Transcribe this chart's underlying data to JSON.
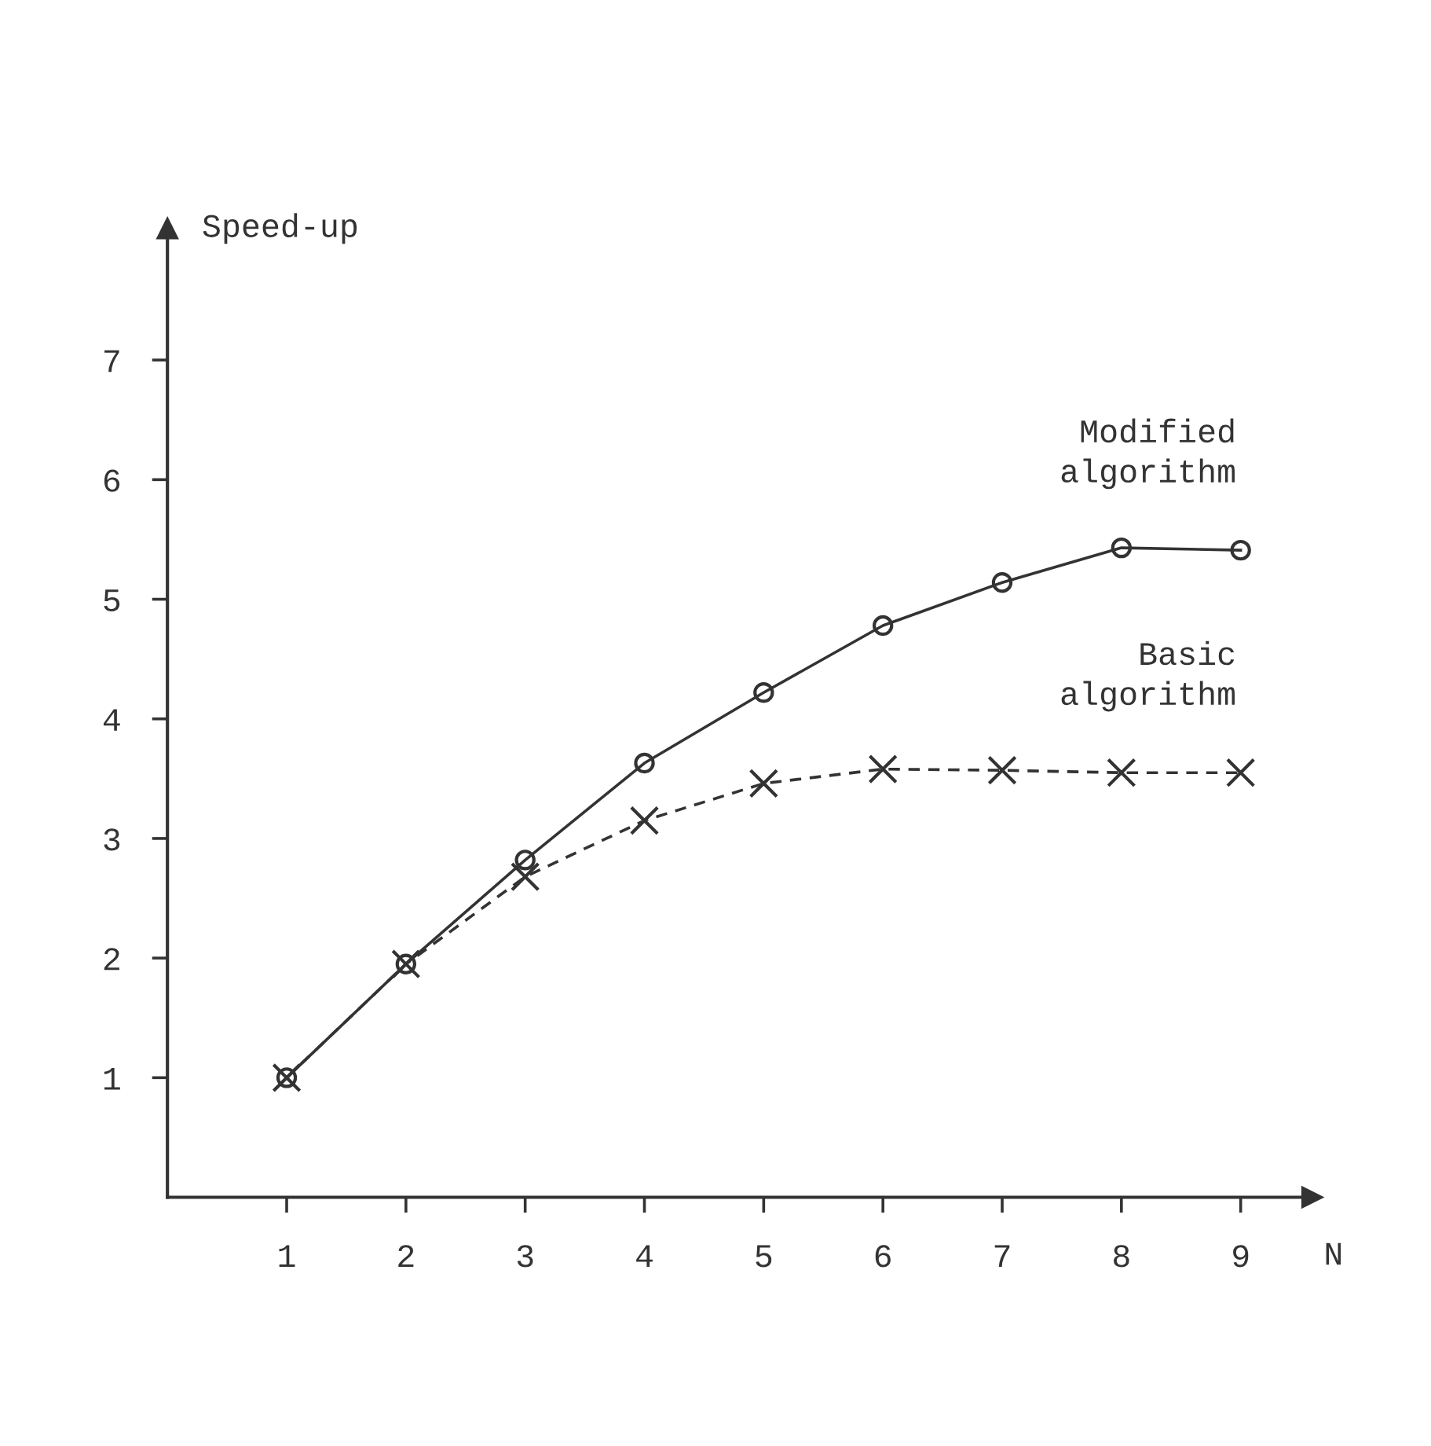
{
  "chart_data": {
    "type": "line",
    "xlabel": "N",
    "ylabel": "Speed-up",
    "x": [
      1,
      2,
      3,
      4,
      5,
      6,
      7,
      8,
      9
    ],
    "series": [
      {
        "name": "Modified algorithm",
        "color": "#333333",
        "marker": "circle",
        "line_style": "solid",
        "values": [
          1.0,
          1.95,
          2.82,
          3.63,
          4.22,
          4.78,
          5.14,
          5.43,
          5.41
        ]
      },
      {
        "name": "Basic algorithm",
        "color": "#333333",
        "marker": "cross",
        "line_style": "dashed",
        "values": [
          1.0,
          1.95,
          2.68,
          3.15,
          3.46,
          3.58,
          3.57,
          3.55,
          3.55
        ]
      }
    ],
    "xlim": [
      0,
      9.6
    ],
    "ylim": [
      0,
      8.1
    ],
    "xticks": [
      1,
      2,
      3,
      4,
      5,
      6,
      7,
      8,
      9
    ],
    "yticks": [
      1,
      2,
      3,
      4,
      5,
      6,
      7
    ],
    "grid": false,
    "legend": false
  }
}
